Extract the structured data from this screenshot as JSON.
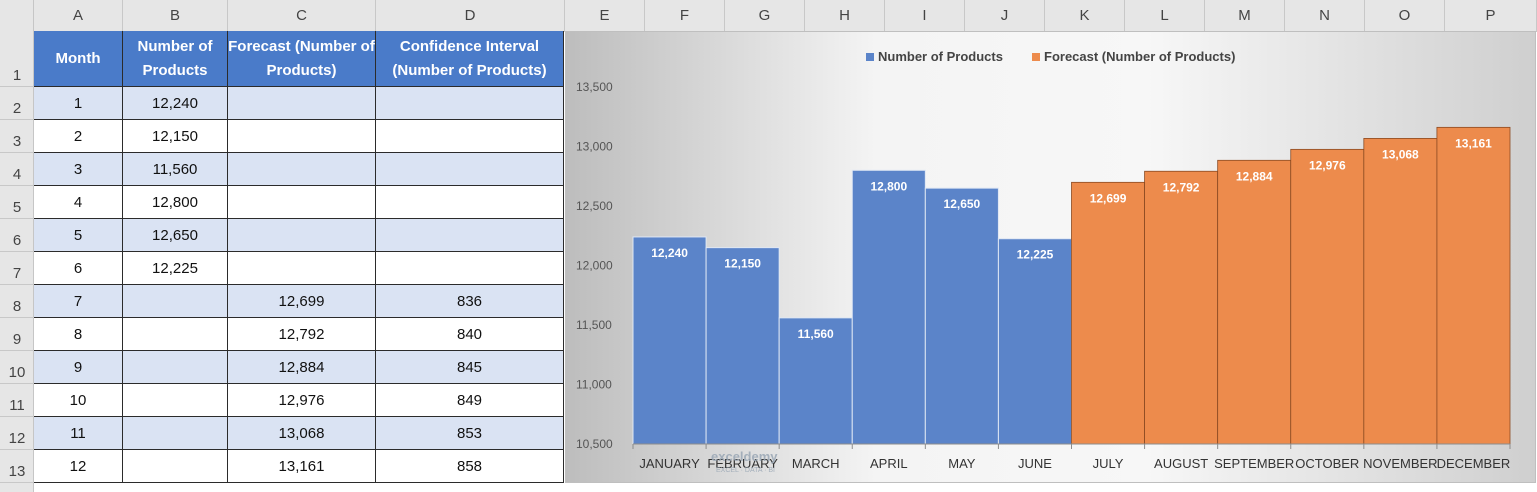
{
  "sheet": {
    "columns": [
      "A",
      "B",
      "C",
      "D",
      "E",
      "F",
      "G",
      "H",
      "I",
      "J",
      "K",
      "L",
      "M",
      "N",
      "O",
      "P"
    ],
    "rows": [
      "1",
      "2",
      "3",
      "4",
      "5",
      "6",
      "7",
      "8",
      "9",
      "10",
      "11",
      "12",
      "13"
    ]
  },
  "table": {
    "headers": [
      "Month",
      "Number of Products",
      "Forecast (Number of Products)",
      "Confidence Interval (Number of Products)"
    ],
    "rows": [
      [
        "1",
        "12,240",
        "",
        ""
      ],
      [
        "2",
        "12,150",
        "",
        ""
      ],
      [
        "3",
        "11,560",
        "",
        ""
      ],
      [
        "4",
        "12,800",
        "",
        ""
      ],
      [
        "5",
        "12,650",
        "",
        ""
      ],
      [
        "6",
        "12,225",
        "",
        ""
      ],
      [
        "7",
        "",
        "12,699",
        "836"
      ],
      [
        "8",
        "",
        "12,792",
        "840"
      ],
      [
        "9",
        "",
        "12,884",
        "845"
      ],
      [
        "10",
        "",
        "12,976",
        "849"
      ],
      [
        "11",
        "",
        "13,068",
        "853"
      ],
      [
        "12",
        "",
        "13,161",
        "858"
      ]
    ]
  },
  "watermark": {
    "name": "exceldemy",
    "tagline": "EXCEL · DATA · BI"
  },
  "chart_data": {
    "type": "bar",
    "categories": [
      "JANUARY",
      "FEBRUARY",
      "MARCH",
      "APRIL",
      "MAY",
      "JUNE",
      "JULY",
      "AUGUST",
      "SEPTEMBER",
      "OCTOBER",
      "NOVEMBER",
      "DECEMBER"
    ],
    "series": [
      {
        "name": "Number of Products",
        "color": "#5b84c9",
        "values": [
          12240,
          12150,
          11560,
          12800,
          12650,
          12225,
          null,
          null,
          null,
          null,
          null,
          null
        ]
      },
      {
        "name": "Forecast (Number of Products)",
        "color": "#ed8b4c",
        "values": [
          null,
          null,
          null,
          null,
          null,
          null,
          12699,
          12792,
          12884,
          12976,
          13068,
          13161
        ]
      }
    ],
    "data_labels": [
      "12,240",
      "12,150",
      "11,560",
      "12,800",
      "12,650",
      "12,225",
      "12,699",
      "12,792",
      "12,884",
      "12,976",
      "13,068",
      "13,161"
    ],
    "y_ticks": [
      "10,500",
      "11,000",
      "11,500",
      "12,000",
      "12,500",
      "13,000",
      "13,500"
    ],
    "ylim": [
      10500,
      13500
    ],
    "title": "",
    "xlabel": "",
    "ylabel": "",
    "grid": false,
    "legend": "top-center",
    "gap_width": 0
  }
}
